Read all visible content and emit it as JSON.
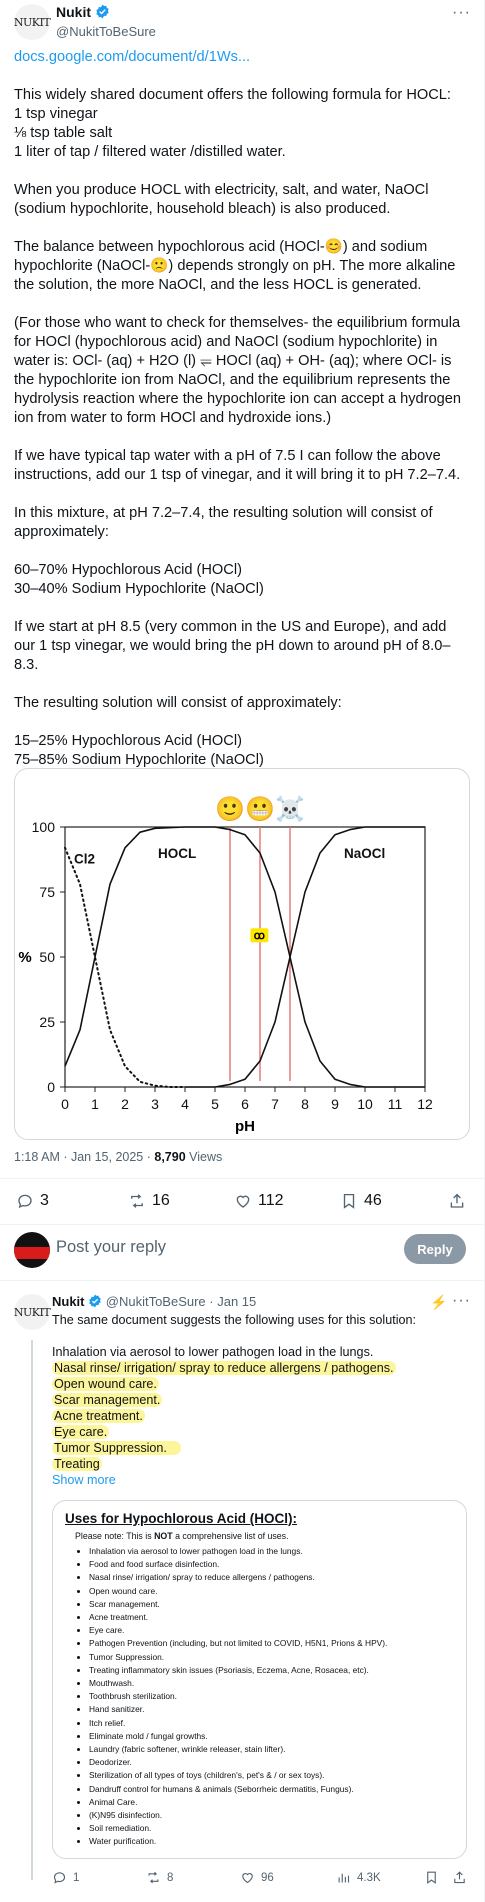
{
  "post": {
    "author_name": "Nukit",
    "author_handle": "@NukitToBeSure",
    "avatar_text": "NUKIT",
    "link": "docs.google.com/document/d/1Ws...",
    "paragraphs": [
      "This widely shared document offers the following formula for HOCL:\n1 tsp vinegar\n⅛ tsp table salt\n1 liter of tap / filtered water /distilled water.",
      "When you produce HOCL with electricity, salt, and water, NaOCl (sodium hypochlorite, household bleach) is also produced.",
      "The balance between hypochlorous acid (HOCl-😊) and sodium hypochlorite (NaOCl-🙁) depends strongly on pH. The more alkaline the solution, the more NaOCl, and the less HOCL is generated.",
      "(For those who want to check for themselves- the equilibrium formula for HOCl (hypochlorous acid) and NaOCl (sodium hypochlorite) in water is: OCl- (aq) + H2O (l) ⥫ HOCl (aq) + OH- (aq); where OCl- is the hypochlorite ion from NaOCl, and the equilibrium represents the hydrolysis reaction where the hypochlorite ion can accept a hydrogen ion from water to form HOCl and hydroxide ions.)",
      "If we have typical tap water with a pH of 7.5 I can follow the above instructions, add our 1 tsp of vinegar, and it will bring it to pH 7.2–7.4.",
      "In this mixture, at pH 7.2–7.4, the resulting solution will consist of approximately:",
      "60–70% Hypochlorous Acid (HOCl)\n30–40% Sodium Hypochlorite (NaOCl)",
      "If we start at pH 8.5 (very common in the US and Europe), and add our 1 tsp vinegar, we would bring the pH down to around pH of 8.0–8.3.",
      "The resulting solution will consist of approximately:",
      "15–25% Hypochlorous Acid (HOCl)\n75–85% Sodium Hypochlorite (NaOCl)"
    ],
    "time": "1:18 AM · Jan 15, 2025 · ",
    "views_count": "8,790",
    "views_label": " Views",
    "replies": "3",
    "reposts": "16",
    "likes": "112",
    "bookmarks": "46"
  },
  "chart_data": {
    "type": "line",
    "xlabel": "pH",
    "ylabel": "%",
    "xlim": [
      0,
      12
    ],
    "ylim": [
      0,
      100
    ],
    "xticks": [
      "0",
      "1",
      "2",
      "3",
      "4",
      "5",
      "6",
      "7",
      "8",
      "9",
      "10",
      "11",
      "12"
    ],
    "yticks": [
      "0",
      "25",
      "50",
      "75",
      "100"
    ],
    "series": [
      {
        "name": "Cl2",
        "style": "dotted",
        "x": [
          0,
          0.5,
          1,
          1.5,
          2,
          2.5,
          3,
          3.5,
          4
        ],
        "y": [
          92,
          78,
          50,
          22,
          8,
          2,
          0.5,
          0,
          0
        ]
      },
      {
        "name": "HOCL",
        "style": "solid",
        "x": [
          0,
          0.5,
          1,
          1.5,
          2,
          2.5,
          3,
          4,
          5,
          5.5,
          6,
          6.5,
          7,
          7.5,
          8,
          8.5,
          9,
          9.5,
          10,
          11,
          12
        ],
        "y": [
          8,
          22,
          50,
          78,
          92,
          98,
          99.5,
          100,
          100,
          99,
          97,
          90,
          75,
          50,
          25,
          10,
          3,
          1,
          0,
          0,
          0
        ]
      },
      {
        "name": "NaOCl",
        "style": "solid",
        "x": [
          4,
          5,
          5.5,
          6,
          6.5,
          7,
          7.5,
          8,
          8.5,
          9,
          9.5,
          10,
          11,
          12
        ],
        "y": [
          0,
          0,
          1,
          3,
          10,
          25,
          50,
          75,
          90,
          97,
          99,
          100,
          100,
          100
        ]
      }
    ],
    "vlines": [
      5.5,
      6.5,
      7.5
    ],
    "vline_color": "#e57373",
    "emoji_markers": [
      "🙂",
      "😬",
      "☠️"
    ],
    "small_marker": "ꝏ"
  },
  "reply_box": {
    "placeholder": "Post your reply",
    "button": "Reply"
  },
  "reply": {
    "author_name": "Nukit",
    "author_handle": "@NukitToBeSure",
    "date": "· Jan 15",
    "intro": "The same document suggests the following uses for this solution:",
    "lines": [
      "Inhalation via aerosol to lower pathogen load in the lungs.",
      "Nasal rinse/ irrigation/ spray to reduce allergens / pathogens.",
      "Open wound care.",
      "Scar management.",
      "Acne treatment.",
      "Eye care.",
      "Tumor Suppression.",
      "Treating"
    ],
    "show_more": "Show more",
    "card_title": "Uses for Hypochlorous Acid (HOCl):",
    "card_note_prefix": "Please note: This is ",
    "card_note_bold": "NOT",
    "card_note_suffix": " a comprehensive list of uses.",
    "uses": [
      "Inhalation via aerosol to lower pathogen load in the lungs.",
      "Food and food surface disinfection.",
      "Nasal rinse/ irrigation/ spray to reduce allergens / pathogens.",
      "Open wound care.",
      "Scar management.",
      "Acne treatment.",
      "Eye care.",
      "Pathogen Prevention (including, but not limited to COVID, H5N1, Prions & HPV).",
      "Tumor Suppression.",
      "Treating inflammatory skin issues (Psoriasis, Eczema, Acne, Rosacea, etc).",
      "Mouthwash.",
      "Toothbrush sterilization.",
      "Hand sanitizer.",
      "Itch relief.",
      "Eliminate mold / fungal growths.",
      "Laundry (fabric softener, wrinkle releaser, stain lifter).",
      "Deodorizer.",
      "Sterilization of all types of toys (children's, pet's & / or sex toys).",
      "Dandruff control for humans & animals (Seborrheic dermatitis, Fungus).",
      "Animal Care.",
      "(K)N95 disinfection.",
      "Soil remediation.",
      "Water purification."
    ],
    "replies": "1",
    "reposts": "8",
    "likes": "96",
    "views": "4.3K"
  },
  "colors": {
    "link": "#1d9bf0",
    "highlight": "#fdf59a",
    "verified": "#1d9bf0"
  }
}
